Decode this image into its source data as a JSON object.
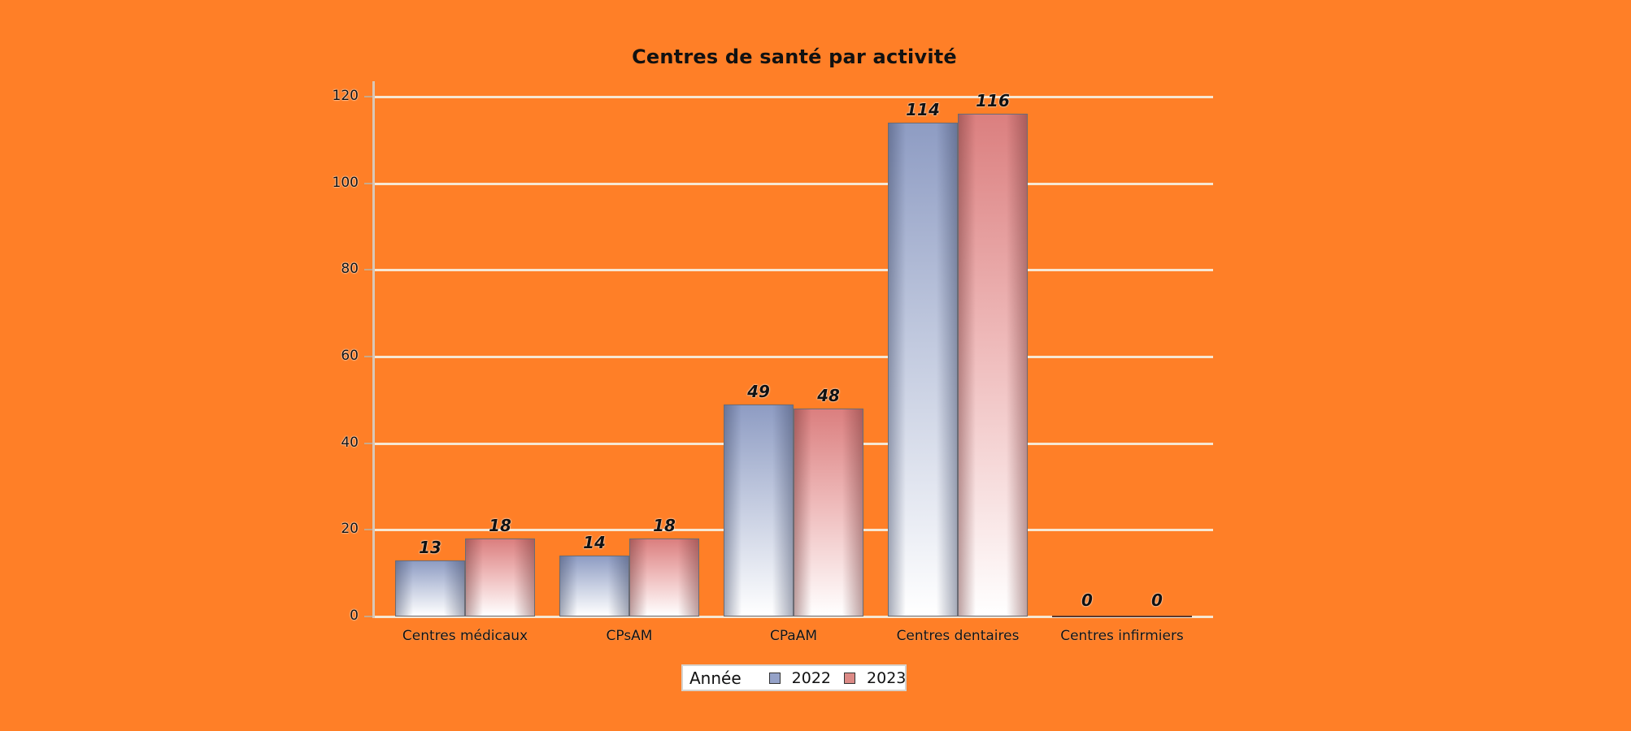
{
  "chart_data": {
    "type": "bar",
    "title": "Centres de santé par activité",
    "xlabel": "",
    "ylabel": "",
    "categories": [
      "Centres médicaux",
      "CPsAM",
      "CPaAM",
      "Centres dentaires",
      "Centres infirmiers"
    ],
    "series": [
      {
        "name": "2022",
        "values": [
          13,
          14,
          49,
          114,
          0
        ],
        "color": "#8e9cc3"
      },
      {
        "name": "2023",
        "values": [
          18,
          18,
          48,
          116,
          0
        ],
        "color": "#db7f7f"
      }
    ],
    "ylim": [
      0,
      120
    ],
    "yticks": [
      0,
      20,
      40,
      60,
      80,
      100,
      120
    ],
    "grid": true,
    "data_labels": true,
    "legend": {
      "title": "Année",
      "position": "bottom",
      "entries": [
        "2022",
        "2023"
      ]
    }
  },
  "style": {
    "background": "#ff7f27",
    "gridline_color": "#f6e7d3"
  }
}
